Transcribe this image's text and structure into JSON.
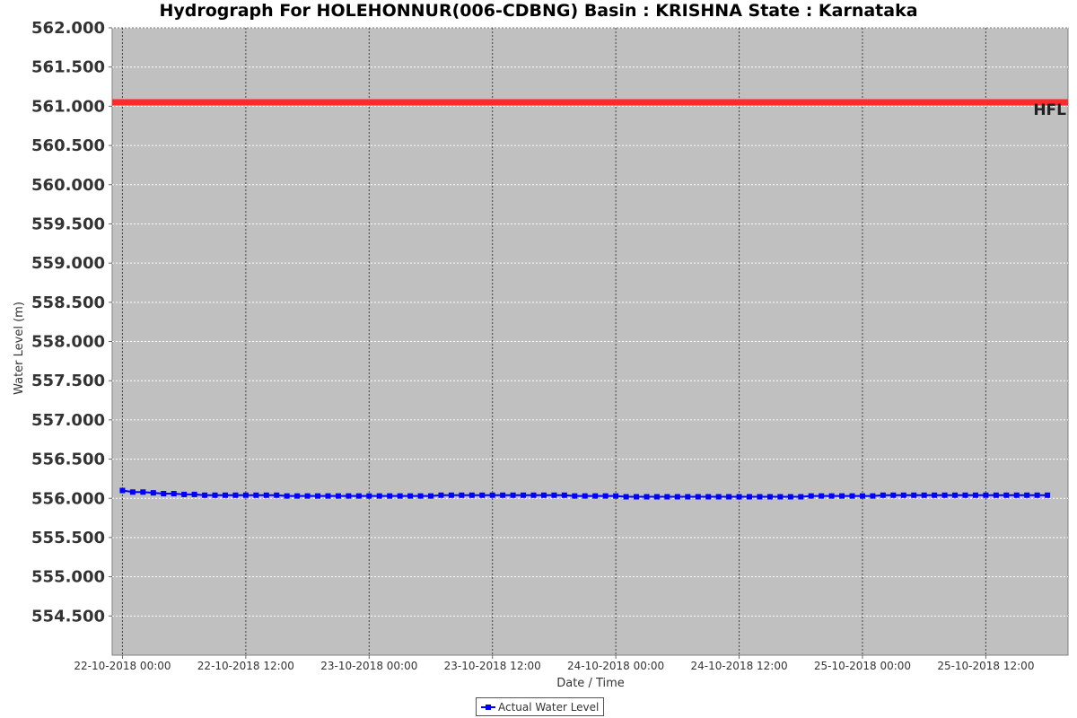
{
  "chart_data": {
    "type": "line",
    "title": "Hydrograph For HOLEHONNUR(006-CDBNG) Basin : KRISHNA State : Karnataka",
    "xlabel": "Date / Time",
    "ylabel": "Water Level (m)",
    "ylim": [
      554.0,
      562.0
    ],
    "xlim": [
      "2018-10-21T23:00",
      "2018-10-25T20:00"
    ],
    "yticks": [
      "554.500",
      "555.000",
      "555.500",
      "556.000",
      "556.500",
      "557.000",
      "557.500",
      "558.000",
      "558.500",
      "559.000",
      "559.500",
      "560.000",
      "560.500",
      "561.000",
      "561.500",
      "562.000"
    ],
    "xticks": [
      {
        "t": "2018-10-22T00:00",
        "label": "22-10-2018 00:00"
      },
      {
        "t": "2018-10-22T12:00",
        "label": "22-10-2018 12:00"
      },
      {
        "t": "2018-10-23T00:00",
        "label": "23-10-2018 00:00"
      },
      {
        "t": "2018-10-23T12:00",
        "label": "23-10-2018 12:00"
      },
      {
        "t": "2018-10-24T00:00",
        "label": "24-10-2018 00:00"
      },
      {
        "t": "2018-10-24T12:00",
        "label": "24-10-2018 12:00"
      },
      {
        "t": "2018-10-25T00:00",
        "label": "25-10-2018 00:00"
      },
      {
        "t": "2018-10-25T12:00",
        "label": "25-10-2018 12:00"
      }
    ],
    "grid": true,
    "legend_position": "bottom",
    "background": "#c0c0c0",
    "series": [
      {
        "name": "Actual Water Level",
        "color": "#0000ff",
        "marker": "square",
        "x": [
          "2018-10-22T00:00",
          "2018-10-22T01:00",
          "2018-10-22T02:00",
          "2018-10-22T03:00",
          "2018-10-22T04:00",
          "2018-10-22T05:00",
          "2018-10-22T06:00",
          "2018-10-22T07:00",
          "2018-10-22T08:00",
          "2018-10-22T09:00",
          "2018-10-22T10:00",
          "2018-10-22T11:00",
          "2018-10-22T12:00",
          "2018-10-22T13:00",
          "2018-10-22T14:00",
          "2018-10-22T15:00",
          "2018-10-22T16:00",
          "2018-10-22T17:00",
          "2018-10-22T18:00",
          "2018-10-22T19:00",
          "2018-10-22T20:00",
          "2018-10-22T21:00",
          "2018-10-22T22:00",
          "2018-10-22T23:00",
          "2018-10-23T00:00",
          "2018-10-23T01:00",
          "2018-10-23T02:00",
          "2018-10-23T03:00",
          "2018-10-23T04:00",
          "2018-10-23T05:00",
          "2018-10-23T06:00",
          "2018-10-23T07:00",
          "2018-10-23T08:00",
          "2018-10-23T09:00",
          "2018-10-23T10:00",
          "2018-10-23T11:00",
          "2018-10-23T12:00",
          "2018-10-23T13:00",
          "2018-10-23T14:00",
          "2018-10-23T15:00",
          "2018-10-23T16:00",
          "2018-10-23T17:00",
          "2018-10-23T18:00",
          "2018-10-23T19:00",
          "2018-10-23T20:00",
          "2018-10-23T21:00",
          "2018-10-23T22:00",
          "2018-10-23T23:00",
          "2018-10-24T00:00",
          "2018-10-24T01:00",
          "2018-10-24T02:00",
          "2018-10-24T03:00",
          "2018-10-24T04:00",
          "2018-10-24T05:00",
          "2018-10-24T06:00",
          "2018-10-24T07:00",
          "2018-10-24T08:00",
          "2018-10-24T09:00",
          "2018-10-24T10:00",
          "2018-10-24T11:00",
          "2018-10-24T12:00",
          "2018-10-24T13:00",
          "2018-10-24T14:00",
          "2018-10-24T15:00",
          "2018-10-24T16:00",
          "2018-10-24T17:00",
          "2018-10-24T18:00",
          "2018-10-24T19:00",
          "2018-10-24T20:00",
          "2018-10-24T21:00",
          "2018-10-24T22:00",
          "2018-10-24T23:00",
          "2018-10-25T00:00",
          "2018-10-25T01:00",
          "2018-10-25T02:00",
          "2018-10-25T03:00",
          "2018-10-25T04:00",
          "2018-10-25T05:00",
          "2018-10-25T06:00",
          "2018-10-25T07:00",
          "2018-10-25T08:00",
          "2018-10-25T09:00",
          "2018-10-25T10:00",
          "2018-10-25T11:00",
          "2018-10-25T12:00",
          "2018-10-25T13:00",
          "2018-10-25T14:00",
          "2018-10-25T15:00",
          "2018-10-25T16:00",
          "2018-10-25T17:00",
          "2018-10-25T18:00"
        ],
        "values": [
          556.1,
          556.08,
          556.08,
          556.07,
          556.06,
          556.06,
          556.05,
          556.05,
          556.04,
          556.04,
          556.04,
          556.04,
          556.04,
          556.04,
          556.04,
          556.04,
          556.03,
          556.03,
          556.03,
          556.03,
          556.03,
          556.03,
          556.03,
          556.03,
          556.03,
          556.03,
          556.03,
          556.03,
          556.03,
          556.03,
          556.03,
          556.04,
          556.04,
          556.04,
          556.04,
          556.04,
          556.04,
          556.04,
          556.04,
          556.04,
          556.04,
          556.04,
          556.04,
          556.04,
          556.03,
          556.03,
          556.03,
          556.03,
          556.03,
          556.02,
          556.02,
          556.02,
          556.02,
          556.02,
          556.02,
          556.02,
          556.02,
          556.02,
          556.02,
          556.02,
          556.02,
          556.02,
          556.02,
          556.02,
          556.02,
          556.02,
          556.02,
          556.03,
          556.03,
          556.03,
          556.03,
          556.03,
          556.03,
          556.03,
          556.04,
          556.04,
          556.04,
          556.04,
          556.04,
          556.04,
          556.04,
          556.04,
          556.04,
          556.04,
          556.04,
          556.04,
          556.04,
          556.04,
          556.04,
          556.04,
          556.04
        ]
      }
    ],
    "reference_lines": [
      {
        "label": "HFL",
        "value": 561.05,
        "color": "#ff2a2a"
      }
    ]
  }
}
